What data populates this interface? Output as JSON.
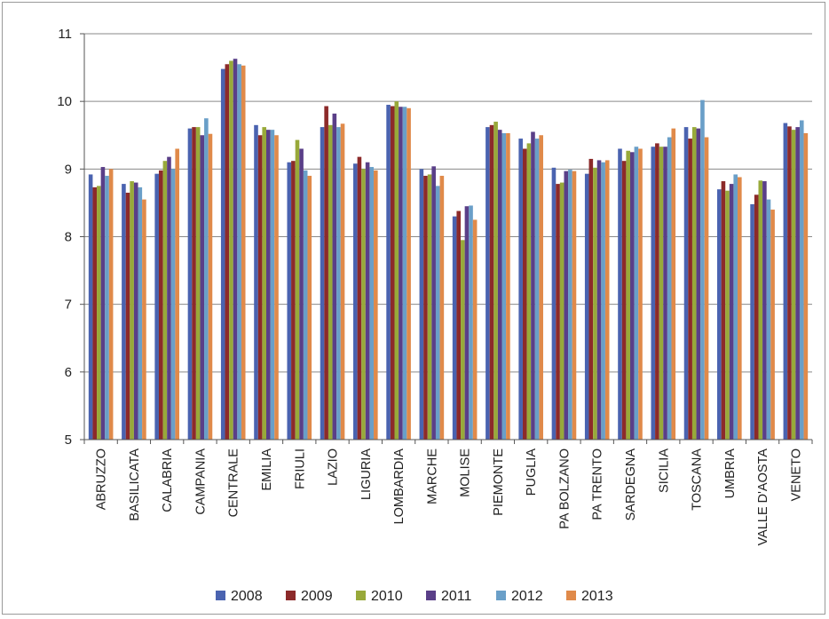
{
  "chart_data": {
    "type": "bar",
    "title": "",
    "xlabel": "",
    "ylabel": "",
    "ylim": [
      5,
      11
    ],
    "yticks": [
      5,
      6,
      7,
      8,
      9,
      10,
      11
    ],
    "grid": true,
    "legend_position": "bottom",
    "colors": [
      "#4a63b0",
      "#8c2a2a",
      "#98a93a",
      "#5a3f88",
      "#6a9fc8",
      "#e08a4a"
    ],
    "categories": [
      "ABRUZZO",
      "BASILICATA",
      "CALABRIA",
      "CAMPANIA",
      "CENTRALE",
      "EMILIA",
      "FRIULI",
      "LAZIO",
      "LIGURIA",
      "LOMBARDIA",
      "MARCHE",
      "MOLISE",
      "PIEMONTE",
      "PUGLIA",
      "PA BOLZANO",
      "PA TRENTO",
      "SARDEGNA",
      "SICILIA",
      "TOSCANA",
      "UMBRIA",
      "VALLE D'AOSTA",
      "VENETO"
    ],
    "series": [
      {
        "name": "2008",
        "values": [
          8.92,
          8.78,
          8.93,
          9.6,
          10.48,
          9.65,
          9.1,
          9.62,
          9.08,
          9.95,
          9.0,
          8.3,
          9.62,
          9.45,
          9.02,
          8.93,
          9.3,
          9.33,
          9.62,
          8.7,
          8.48,
          9.68
        ]
      },
      {
        "name": "2009",
        "values": [
          8.73,
          8.65,
          8.98,
          9.62,
          10.55,
          9.5,
          9.12,
          9.93,
          9.18,
          9.93,
          8.9,
          8.38,
          9.65,
          9.3,
          8.78,
          9.15,
          9.12,
          9.38,
          9.45,
          8.82,
          8.62,
          9.63
        ]
      },
      {
        "name": "2010",
        "values": [
          8.75,
          8.82,
          9.12,
          9.62,
          10.6,
          9.62,
          9.43,
          9.65,
          9.0,
          10.0,
          8.92,
          7.95,
          9.7,
          9.38,
          8.8,
          9.02,
          9.27,
          9.33,
          9.62,
          8.68,
          8.83,
          9.58
        ]
      },
      {
        "name": "2011",
        "values": [
          9.03,
          8.8,
          9.18,
          9.5,
          10.63,
          9.58,
          9.3,
          9.82,
          9.1,
          9.92,
          9.04,
          8.45,
          9.58,
          9.55,
          8.97,
          9.13,
          9.25,
          9.33,
          9.6,
          8.78,
          8.82,
          9.62
        ]
      },
      {
        "name": "2012",
        "values": [
          8.9,
          8.73,
          9.0,
          9.75,
          10.55,
          9.58,
          8.98,
          9.62,
          9.03,
          9.92,
          8.75,
          8.46,
          9.53,
          9.45,
          8.99,
          9.1,
          9.33,
          9.47,
          10.02,
          8.92,
          8.55,
          9.72
        ]
      },
      {
        "name": "2013",
        "values": [
          9.0,
          8.55,
          9.3,
          9.52,
          10.53,
          9.5,
          8.9,
          9.67,
          8.98,
          9.9,
          8.9,
          8.25,
          9.53,
          9.5,
          8.97,
          9.13,
          9.3,
          9.6,
          9.47,
          8.88,
          8.4,
          9.53
        ]
      }
    ]
  }
}
